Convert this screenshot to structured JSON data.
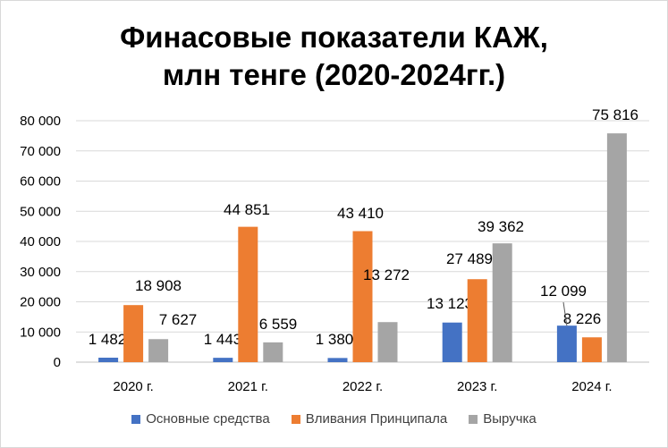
{
  "chart_data": {
    "type": "bar",
    "title": "Финасовые показатели КАЖ, млн тенге (2020-2024гг.)",
    "title_lines": [
      "Финасовые показатели КАЖ,",
      "млн тенге (2020-2024гг.)"
    ],
    "categories": [
      "2020 г.",
      "2021 г.",
      "2022 г.",
      "2023 г.",
      "2024 г."
    ],
    "series": [
      {
        "name": "Основные средства",
        "color": "#4472C4",
        "values": [
          1482,
          1443,
          1380,
          13123,
          12099
        ],
        "labels": [
          "1 482",
          "1 443",
          "1 380",
          "13 123",
          "12 099"
        ]
      },
      {
        "name": "Вливания Принципала",
        "color": "#ED7D31",
        "values": [
          18908,
          44851,
          43410,
          27489,
          8226
        ],
        "labels": [
          "18 908",
          "44 851",
          "43 410",
          "27 489",
          "8 226"
        ]
      },
      {
        "name": "Выручка",
        "color": "#A5A5A5",
        "values": [
          7627,
          6559,
          13272,
          39362,
          75816
        ],
        "labels": [
          "7 627",
          "6 559",
          "13 272",
          "39 362",
          "75 816"
        ]
      }
    ],
    "ylim": [
      0,
      80000
    ],
    "yticks": [
      0,
      10000,
      20000,
      30000,
      40000,
      50000,
      60000,
      70000,
      80000
    ],
    "ytick_labels": [
      "0",
      "10 000",
      "20 000",
      "30 000",
      "40 000",
      "50 000",
      "60 000",
      "70 000",
      "80 000"
    ],
    "xlabel": "",
    "ylabel": "",
    "grid": true,
    "legend_position": "bottom"
  }
}
